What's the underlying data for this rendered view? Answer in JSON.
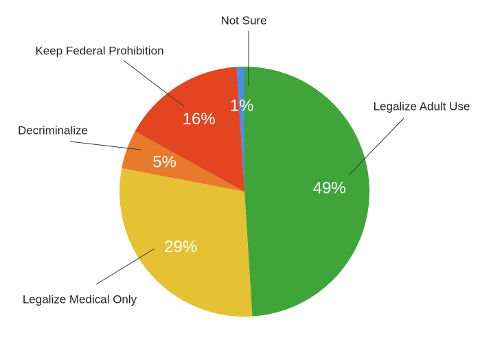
{
  "chart_data": {
    "type": "pie",
    "categories": [
      "Legalize Adult Use",
      "Legalize Medical Only",
      "Decriminalize",
      "Keep Federal Prohibition",
      "Not Sure"
    ],
    "values": [
      49,
      29,
      5,
      16,
      1
    ],
    "value_labels": [
      "49%",
      "29%",
      "5%",
      "16%",
      "1%"
    ],
    "colors": [
      "#3fa53a",
      "#e5c234",
      "#e87a2c",
      "#e2451f",
      "#4a8fe0"
    ]
  }
}
